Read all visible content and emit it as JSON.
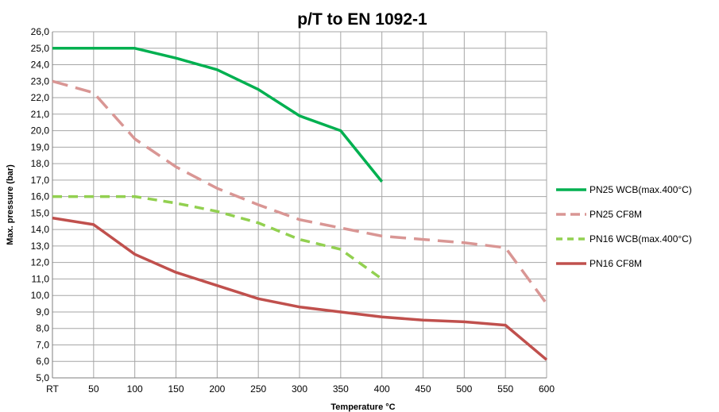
{
  "chart_data": {
    "type": "line",
    "title": "p/T to EN 1092-1",
    "xlabel": "Temperature °C",
    "ylabel": "Max. pressure (bar)",
    "categories": [
      "RT",
      "50",
      "100",
      "150",
      "200",
      "250",
      "300",
      "350",
      "400",
      "450",
      "500",
      "550",
      "600"
    ],
    "ylim": [
      5.0,
      26.0
    ],
    "ytick_step": 1.0,
    "y_tick_labels": [
      "5,0",
      "6,0",
      "7,0",
      "8,0",
      "9,0",
      "10,0",
      "11,0",
      "12,0",
      "13,0",
      "14,0",
      "15,0",
      "16,0",
      "17,0",
      "18,0",
      "19,0",
      "20,0",
      "21,0",
      "22,0",
      "23,0",
      "24,0",
      "25,0",
      "26,0"
    ],
    "grid": true,
    "legend_position": "right",
    "series": [
      {
        "name": "PN25 WCB(max.400°C)",
        "color": "#00b050",
        "dash": "solid",
        "values": [
          25.0,
          25.0,
          25.0,
          24.4,
          23.7,
          22.5,
          20.9,
          20.0,
          16.9,
          null,
          null,
          null,
          null
        ]
      },
      {
        "name": "PN25 CF8M",
        "color": "#d99694",
        "dash": "long-dash",
        "values": [
          23.0,
          22.3,
          19.5,
          17.8,
          16.5,
          15.5,
          14.6,
          14.1,
          13.6,
          13.4,
          13.2,
          12.9,
          9.5
        ]
      },
      {
        "name": "PN16 WCB(max.400°C)",
        "color": "#92d050",
        "dash": "dash",
        "values": [
          16.0,
          16.0,
          16.0,
          15.6,
          15.1,
          14.4,
          13.4,
          12.8,
          11.0,
          null,
          null,
          null,
          null
        ]
      },
      {
        "name": "PN16 CF8M",
        "color": "#c0504d",
        "dash": "solid",
        "values": [
          14.7,
          14.3,
          12.5,
          11.4,
          10.6,
          9.8,
          9.3,
          9.0,
          8.7,
          8.5,
          8.4,
          8.2,
          6.1
        ]
      }
    ]
  }
}
